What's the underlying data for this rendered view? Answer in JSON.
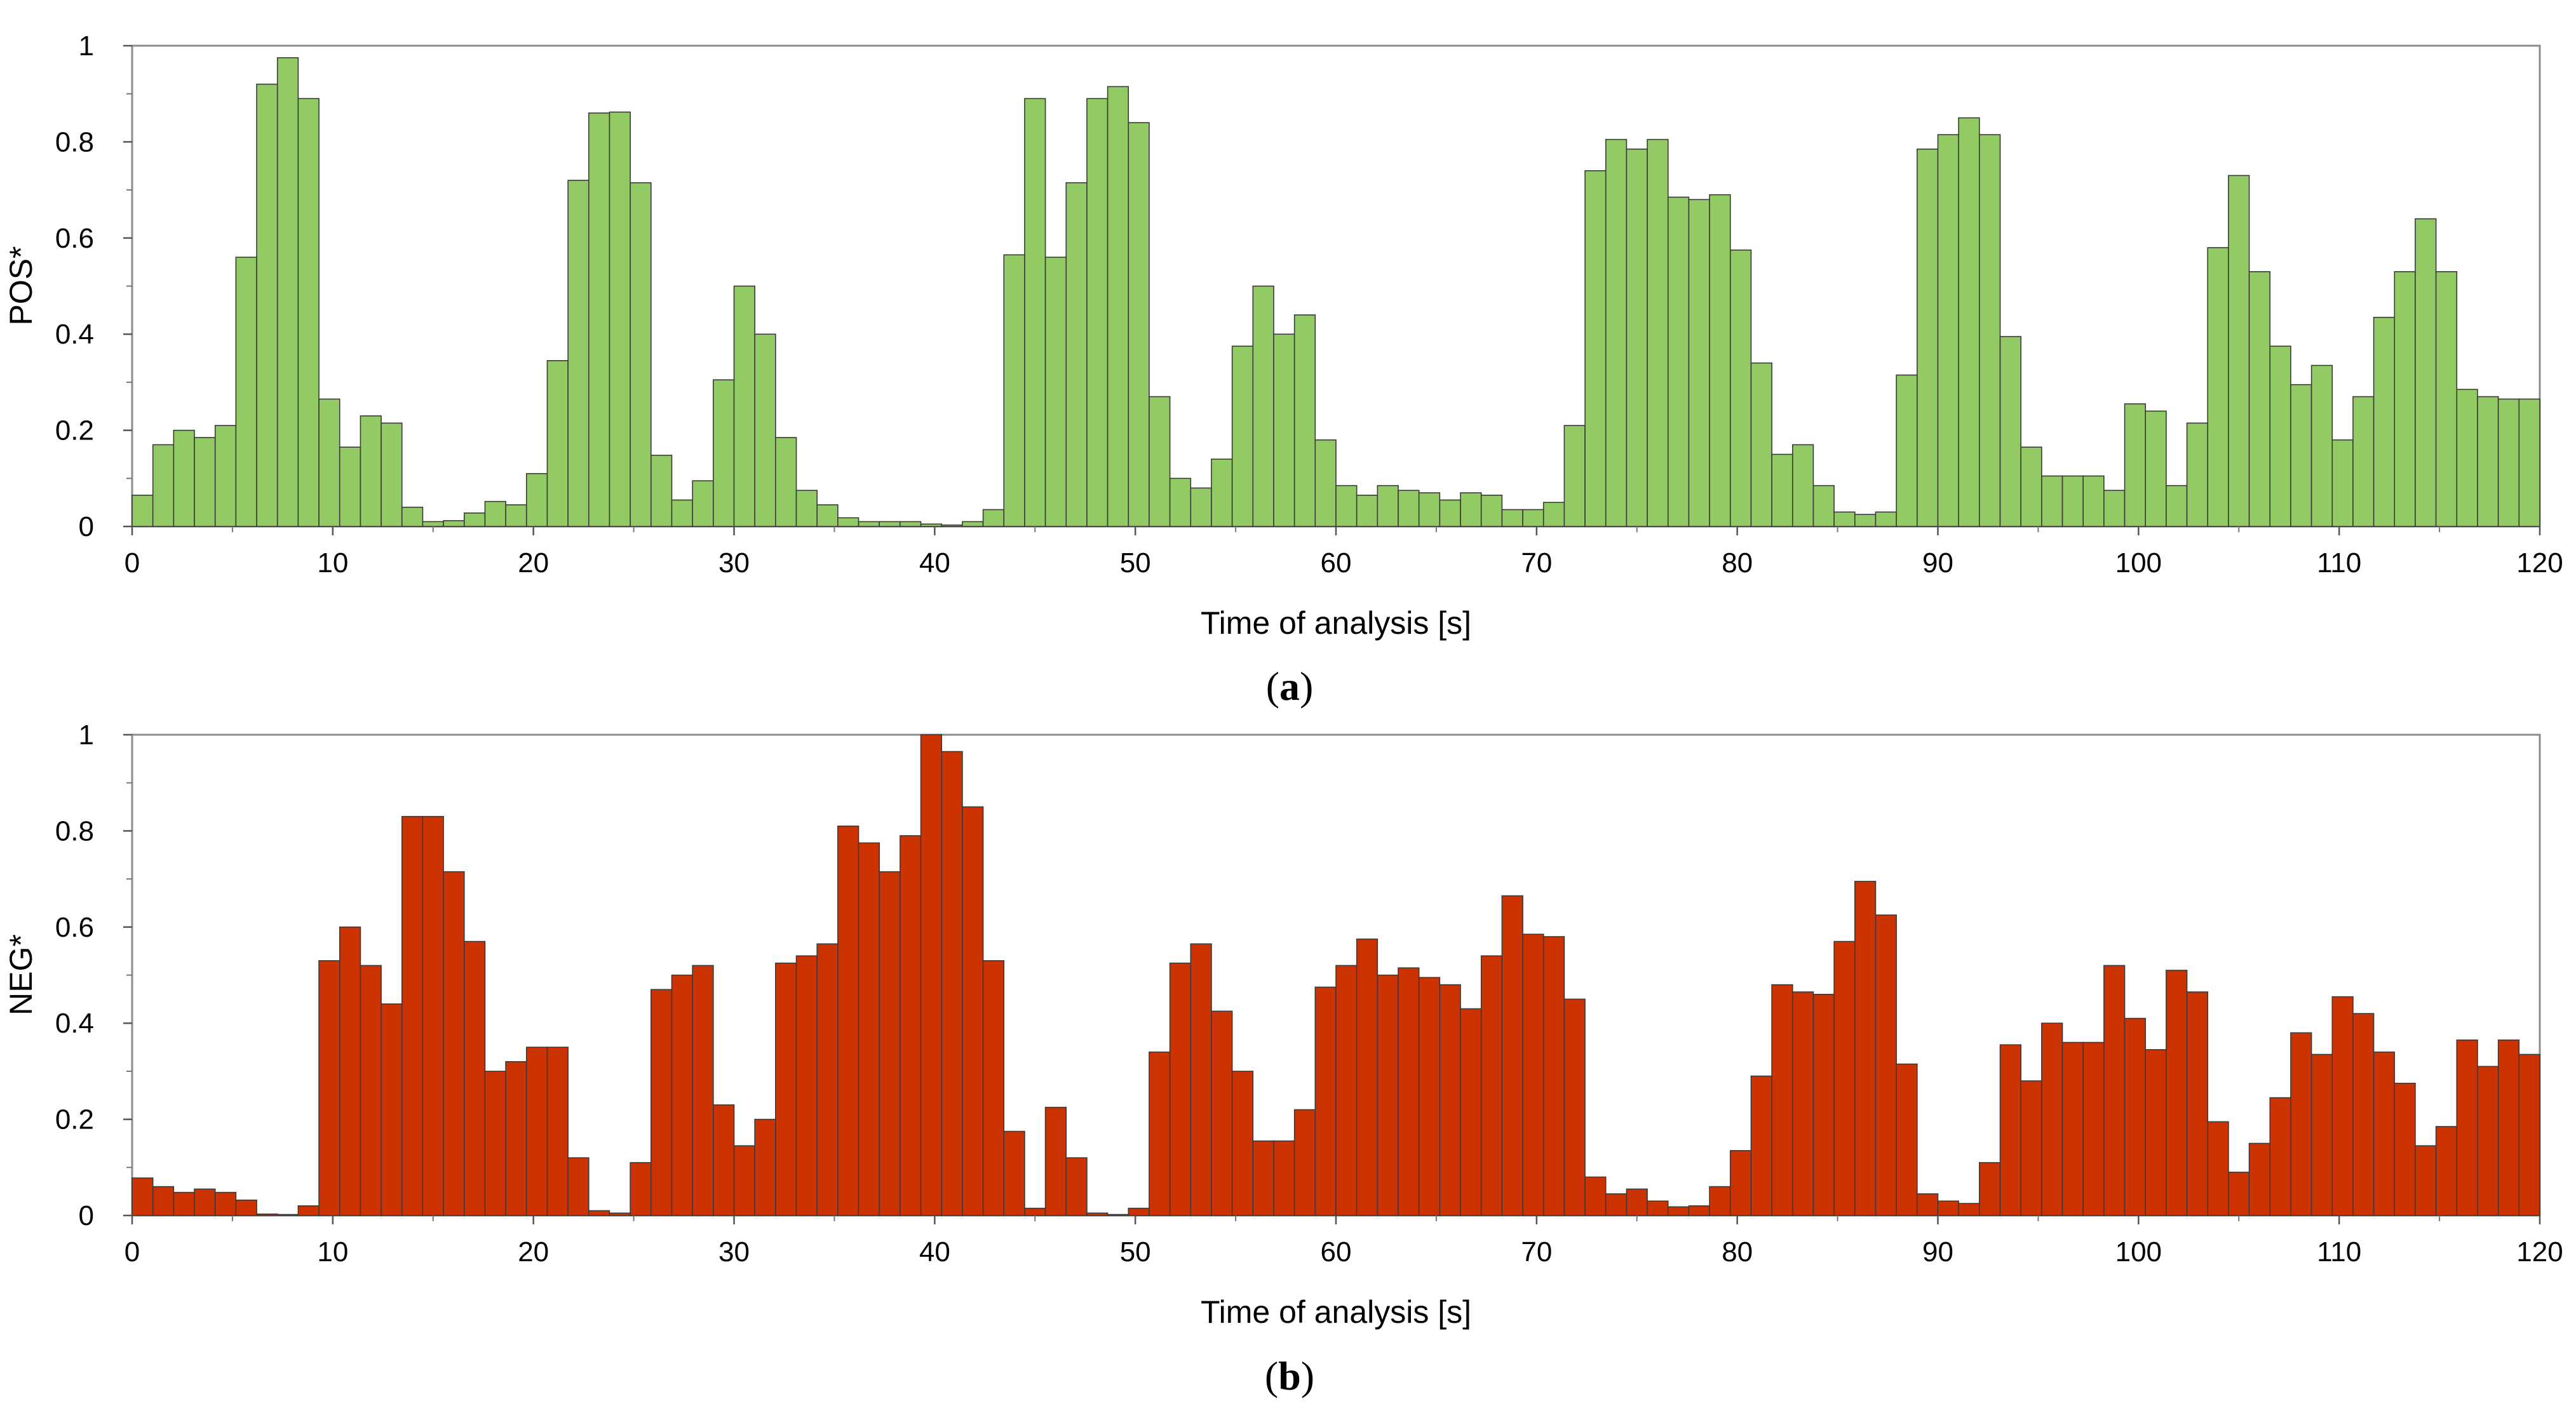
{
  "chart_data": [
    {
      "type": "bar",
      "panel": "a",
      "caption_letter": "a",
      "xlabel": "Time of analysis [s]",
      "ylabel": "POS*",
      "xlim": [
        0,
        120
      ],
      "ylim": [
        0,
        1
      ],
      "xticks": [
        "0",
        "10",
        "20",
        "30",
        "40",
        "50",
        "60",
        "70",
        "80",
        "90",
        "100",
        "110",
        "120"
      ],
      "yticks": [
        "0",
        "0.2",
        "0.4",
        "0.6",
        "0.8",
        "1"
      ],
      "bar_color": "#92CB63",
      "values": [
        0.065,
        0.17,
        0.2,
        0.185,
        0.21,
        0.56,
        0.92,
        0.975,
        0.89,
        0.265,
        0.165,
        0.23,
        0.215,
        0.04,
        0.01,
        0.012,
        0.028,
        0.052,
        0.045,
        0.11,
        0.345,
        0.72,
        0.86,
        0.862,
        0.715,
        0.148,
        0.055,
        0.095,
        0.305,
        0.5,
        0.4,
        0.185,
        0.075,
        0.045,
        0.018,
        0.01,
        0.01,
        0.01,
        0.005,
        0.003,
        0.01,
        0.035,
        0.565,
        0.89,
        0.56,
        0.715,
        0.89,
        0.915,
        0.84,
        0.27,
        0.1,
        0.08,
        0.14,
        0.375,
        0.5,
        0.4,
        0.44,
        0.18,
        0.085,
        0.065,
        0.085,
        0.075,
        0.07,
        0.055,
        0.07,
        0.065,
        0.035,
        0.035,
        0.05,
        0.21,
        0.74,
        0.805,
        0.785,
        0.805,
        0.685,
        0.68,
        0.69,
        0.575,
        0.34,
        0.15,
        0.17,
        0.085,
        0.03,
        0.025,
        0.03,
        0.315,
        0.785,
        0.815,
        0.85,
        0.815,
        0.395,
        0.165,
        0.105,
        0.105,
        0.105,
        0.075,
        0.255,
        0.24,
        0.085,
        0.215,
        0.58,
        0.73,
        0.53,
        0.375,
        0.295,
        0.335,
        0.18,
        0.27,
        0.435,
        0.53,
        0.64,
        0.53,
        0.285,
        0.27,
        0.265,
        0.265
      ]
    },
    {
      "type": "bar",
      "panel": "b",
      "caption_letter": "b",
      "xlabel": "Time of analysis [s]",
      "ylabel": "NEG*",
      "xlim": [
        0,
        120
      ],
      "ylim": [
        0,
        1
      ],
      "xticks": [
        "0",
        "10",
        "20",
        "30",
        "40",
        "50",
        "60",
        "70",
        "80",
        "90",
        "100",
        "110",
        "120"
      ],
      "yticks": [
        "0",
        "0.2",
        "0.4",
        "0.6",
        "0.8",
        "1"
      ],
      "bar_color": "#CC3300",
      "values": [
        0.078,
        0.06,
        0.048,
        0.055,
        0.048,
        0.032,
        0.003,
        0.002,
        0.02,
        0.53,
        0.6,
        0.52,
        0.44,
        0.83,
        0.83,
        0.715,
        0.57,
        0.3,
        0.32,
        0.35,
        0.35,
        0.12,
        0.01,
        0.005,
        0.11,
        0.47,
        0.5,
        0.52,
        0.23,
        0.145,
        0.2,
        0.525,
        0.54,
        0.565,
        0.81,
        0.775,
        0.715,
        0.79,
        1.0,
        0.965,
        0.85,
        0.53,
        0.175,
        0.015,
        0.225,
        0.12,
        0.005,
        0.002,
        0.015,
        0.34,
        0.525,
        0.565,
        0.425,
        0.3,
        0.155,
        0.155,
        0.22,
        0.475,
        0.52,
        0.575,
        0.5,
        0.515,
        0.495,
        0.48,
        0.43,
        0.54,
        0.665,
        0.585,
        0.58,
        0.45,
        0.08,
        0.045,
        0.055,
        0.03,
        0.018,
        0.02,
        0.06,
        0.135,
        0.29,
        0.48,
        0.465,
        0.46,
        0.57,
        0.695,
        0.625,
        0.315,
        0.045,
        0.03,
        0.025,
        0.11,
        0.355,
        0.28,
        0.4,
        0.36,
        0.36,
        0.52,
        0.41,
        0.345,
        0.51,
        0.465,
        0.195,
        0.09,
        0.15,
        0.245,
        0.38,
        0.335,
        0.455,
        0.42,
        0.34,
        0.275,
        0.145,
        0.185,
        0.365,
        0.31,
        0.365,
        0.335
      ]
    }
  ]
}
